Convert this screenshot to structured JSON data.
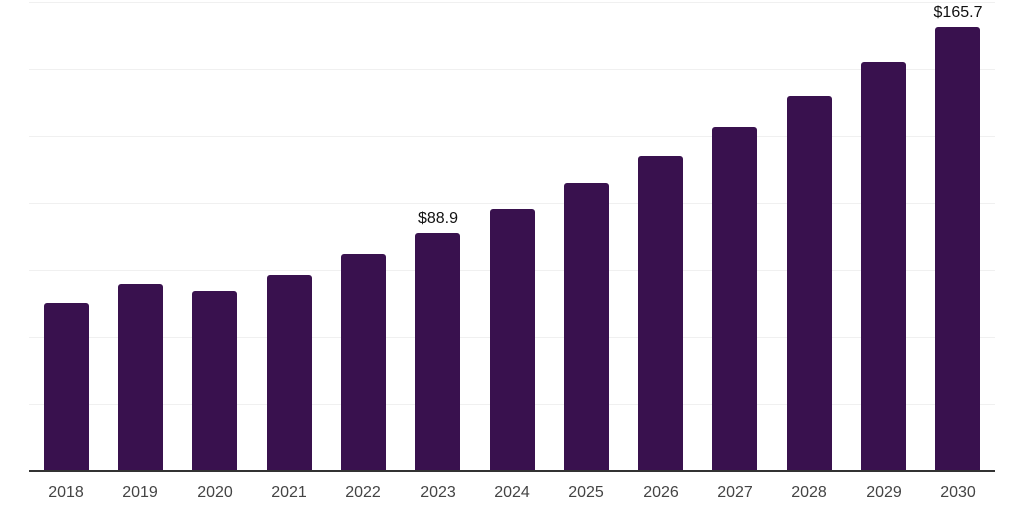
{
  "chart_data": {
    "type": "bar",
    "title": "",
    "xlabel": "",
    "ylabel": "",
    "categories": [
      "2018",
      "2019",
      "2020",
      "2021",
      "2022",
      "2023",
      "2024",
      "2025",
      "2026",
      "2027",
      "2028",
      "2029",
      "2030"
    ],
    "values": [
      62.9,
      69.7,
      67.1,
      73.1,
      81.0,
      88.9,
      98.0,
      107.7,
      117.8,
      128.6,
      140.2,
      152.9,
      165.7
    ],
    "data_labels": [
      "",
      "",
      "",
      "",
      "",
      "$88.9",
      "",
      "",
      "",
      "",
      "",
      "",
      "$165.7"
    ],
    "ylim": [
      0,
      175.5
    ],
    "gridline_interval": 25,
    "grid": "horizontal",
    "legend_position": "none",
    "colors": {
      "bar_fill": "#39114e",
      "gridline": "#f0f0f0",
      "axis_line": "#333333",
      "tick_label": "#444444",
      "data_label": "#111111",
      "background": "#ffffff"
    }
  }
}
